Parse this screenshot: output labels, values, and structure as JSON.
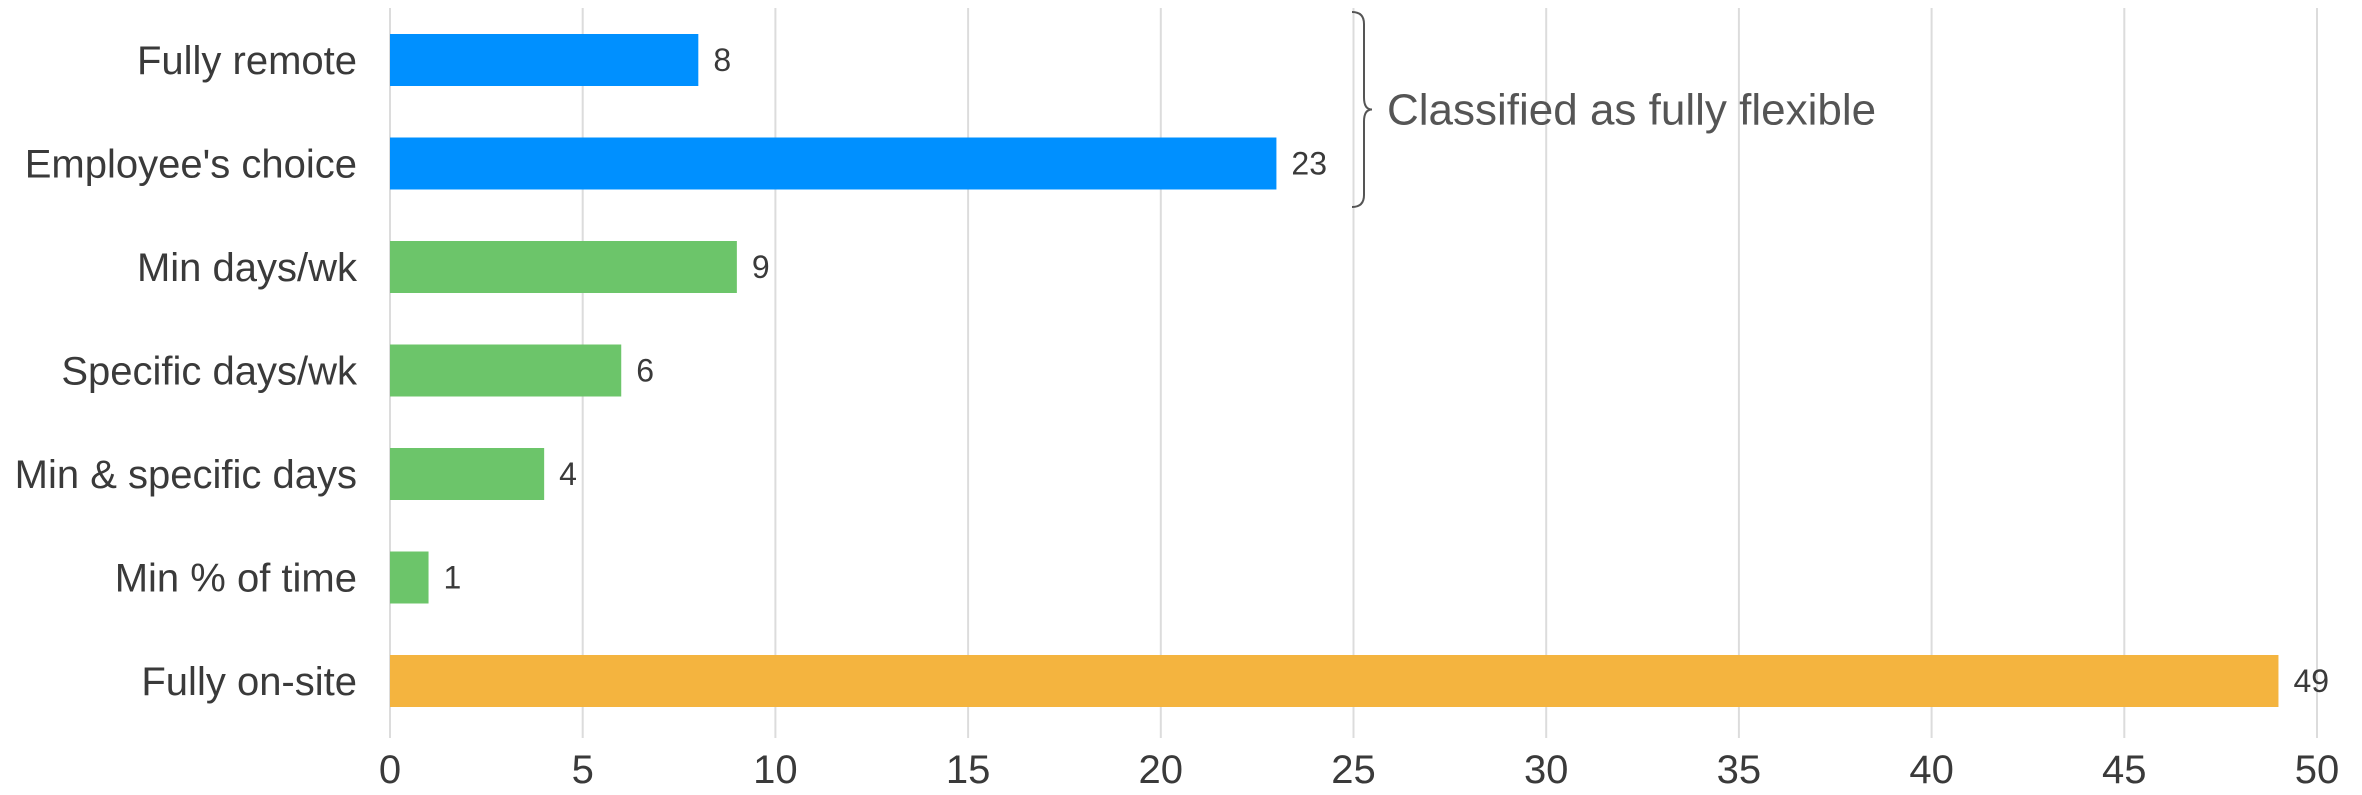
{
  "chart_data": {
    "type": "bar",
    "orientation": "horizontal",
    "title": "",
    "xlabel": "",
    "ylabel": "",
    "xlim": [
      0,
      50
    ],
    "grid": true,
    "xticks": [
      0,
      5,
      10,
      15,
      20,
      25,
      30,
      35,
      40,
      45,
      50
    ],
    "categories": [
      "Fully remote",
      "Employee's choice",
      "Min days/wk",
      "Specific days/wk",
      "Min & specific days",
      "Min % of time",
      "Fully on-site"
    ],
    "values": [
      8,
      23,
      9,
      6,
      4,
      1,
      49
    ],
    "bar_colors": [
      "#0090ff",
      "#0090ff",
      "#6cc56a",
      "#6cc56a",
      "#6cc56a",
      "#6cc56a",
      "#f4b43f"
    ],
    "annotations": [
      {
        "text": "Classified as fully flexible",
        "applies_to": [
          "Fully remote",
          "Employee's choice"
        ]
      }
    ]
  }
}
